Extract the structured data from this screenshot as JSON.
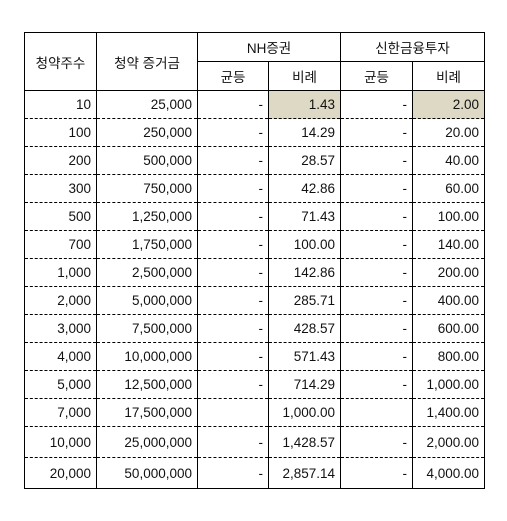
{
  "headers": {
    "shares": "청약주수",
    "deposit": "청약 증거금",
    "broker1": "NH증권",
    "broker2": "신한금융투자",
    "equal": "균등",
    "proportional": "비례"
  },
  "rows": [
    {
      "shares": "10",
      "deposit": "25,000",
      "nh_equal": "-",
      "nh_prop": "1.43",
      "sh_equal": "-",
      "sh_prop": "2.00"
    },
    {
      "shares": "100",
      "deposit": "250,000",
      "nh_equal": "-",
      "nh_prop": "14.29",
      "sh_equal": "-",
      "sh_prop": "20.00"
    },
    {
      "shares": "200",
      "deposit": "500,000",
      "nh_equal": "-",
      "nh_prop": "28.57",
      "sh_equal": "-",
      "sh_prop": "40.00"
    },
    {
      "shares": "300",
      "deposit": "750,000",
      "nh_equal": "-",
      "nh_prop": "42.86",
      "sh_equal": "-",
      "sh_prop": "60.00"
    },
    {
      "shares": "500",
      "deposit": "1,250,000",
      "nh_equal": "-",
      "nh_prop": "71.43",
      "sh_equal": "-",
      "sh_prop": "100.00"
    },
    {
      "shares": "700",
      "deposit": "1,750,000",
      "nh_equal": "-",
      "nh_prop": "100.00",
      "sh_equal": "-",
      "sh_prop": "140.00"
    },
    {
      "shares": "1,000",
      "deposit": "2,500,000",
      "nh_equal": "-",
      "nh_prop": "142.86",
      "sh_equal": "-",
      "sh_prop": "200.00"
    },
    {
      "shares": "2,000",
      "deposit": "5,000,000",
      "nh_equal": "-",
      "nh_prop": "285.71",
      "sh_equal": "-",
      "sh_prop": "400.00"
    },
    {
      "shares": "3,000",
      "deposit": "7,500,000",
      "nh_equal": "-",
      "nh_prop": "428.57",
      "sh_equal": "-",
      "sh_prop": "600.00"
    },
    {
      "shares": "4,000",
      "deposit": "10,000,000",
      "nh_equal": "-",
      "nh_prop": "571.43",
      "sh_equal": "-",
      "sh_prop": "800.00"
    },
    {
      "shares": "5,000",
      "deposit": "12,500,000",
      "nh_equal": "-",
      "nh_prop": "714.29",
      "sh_equal": "-",
      "sh_prop": "1,000.00"
    },
    {
      "shares": "7,000",
      "deposit": "17,500,000",
      "nh_equal": "",
      "nh_prop": "1,000.00",
      "sh_equal": "",
      "sh_prop": "1,400.00"
    },
    {
      "shares": "10,000",
      "deposit": "25,000,000",
      "nh_equal": "-",
      "nh_prop": "1,428.57",
      "sh_equal": "-",
      "sh_prop": "2,000.00"
    },
    {
      "shares": "20,000",
      "deposit": "50,000,000",
      "nh_equal": "-",
      "nh_prop": "2,857.14",
      "sh_equal": "-",
      "sh_prop": "4,000.00"
    }
  ],
  "highlight_color": "#ddd9c4"
}
